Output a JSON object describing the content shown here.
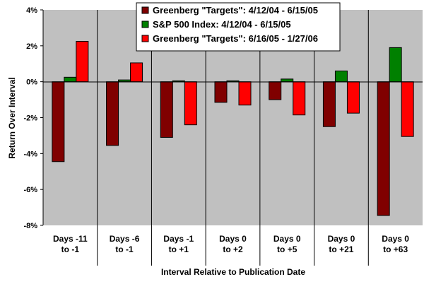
{
  "chart_data": {
    "type": "bar",
    "categories": [
      [
        "Days -11",
        "to -1"
      ],
      [
        "Days -6",
        "to -1"
      ],
      [
        "Days -1",
        "to +1"
      ],
      [
        "Days 0",
        "to +2"
      ],
      [
        "Days 0",
        "to +5"
      ],
      [
        "Days 0",
        "to +21"
      ],
      [
        "Days 0",
        "to +63"
      ]
    ],
    "series": [
      {
        "name": "Greenberg \"Targets\": 4/12/04 - 6/15/05",
        "color": "#800000",
        "values": [
          -4.45,
          -3.55,
          -3.1,
          -1.15,
          -1.0,
          -2.5,
          -7.45
        ]
      },
      {
        "name": "S&P 500 Index: 4/12/04 - 6/15/05",
        "color": "#008000",
        "values": [
          0.25,
          0.1,
          0.05,
          0.05,
          0.15,
          0.6,
          1.9
        ]
      },
      {
        "name": "Greenberg \"Targets\": 6/16/05 - 1/27/06",
        "color": "#ff0000",
        "values": [
          2.25,
          1.05,
          -2.4,
          -1.3,
          -1.85,
          -1.75,
          -3.05
        ]
      }
    ],
    "xlabel": "Interval Relative to Publication Date",
    "ylabel": "Return Over Interval",
    "ylim": [
      -8,
      4
    ],
    "yticks": [
      4,
      2,
      0,
      -2,
      -4,
      -6,
      -8
    ],
    "ytick_labels": [
      "4%",
      "2%",
      "0%",
      "-2%",
      "-4%",
      "-6%",
      "-8%"
    ],
    "grid": true,
    "legend_position": "top-center",
    "plot_background": "#c0c0c0"
  }
}
